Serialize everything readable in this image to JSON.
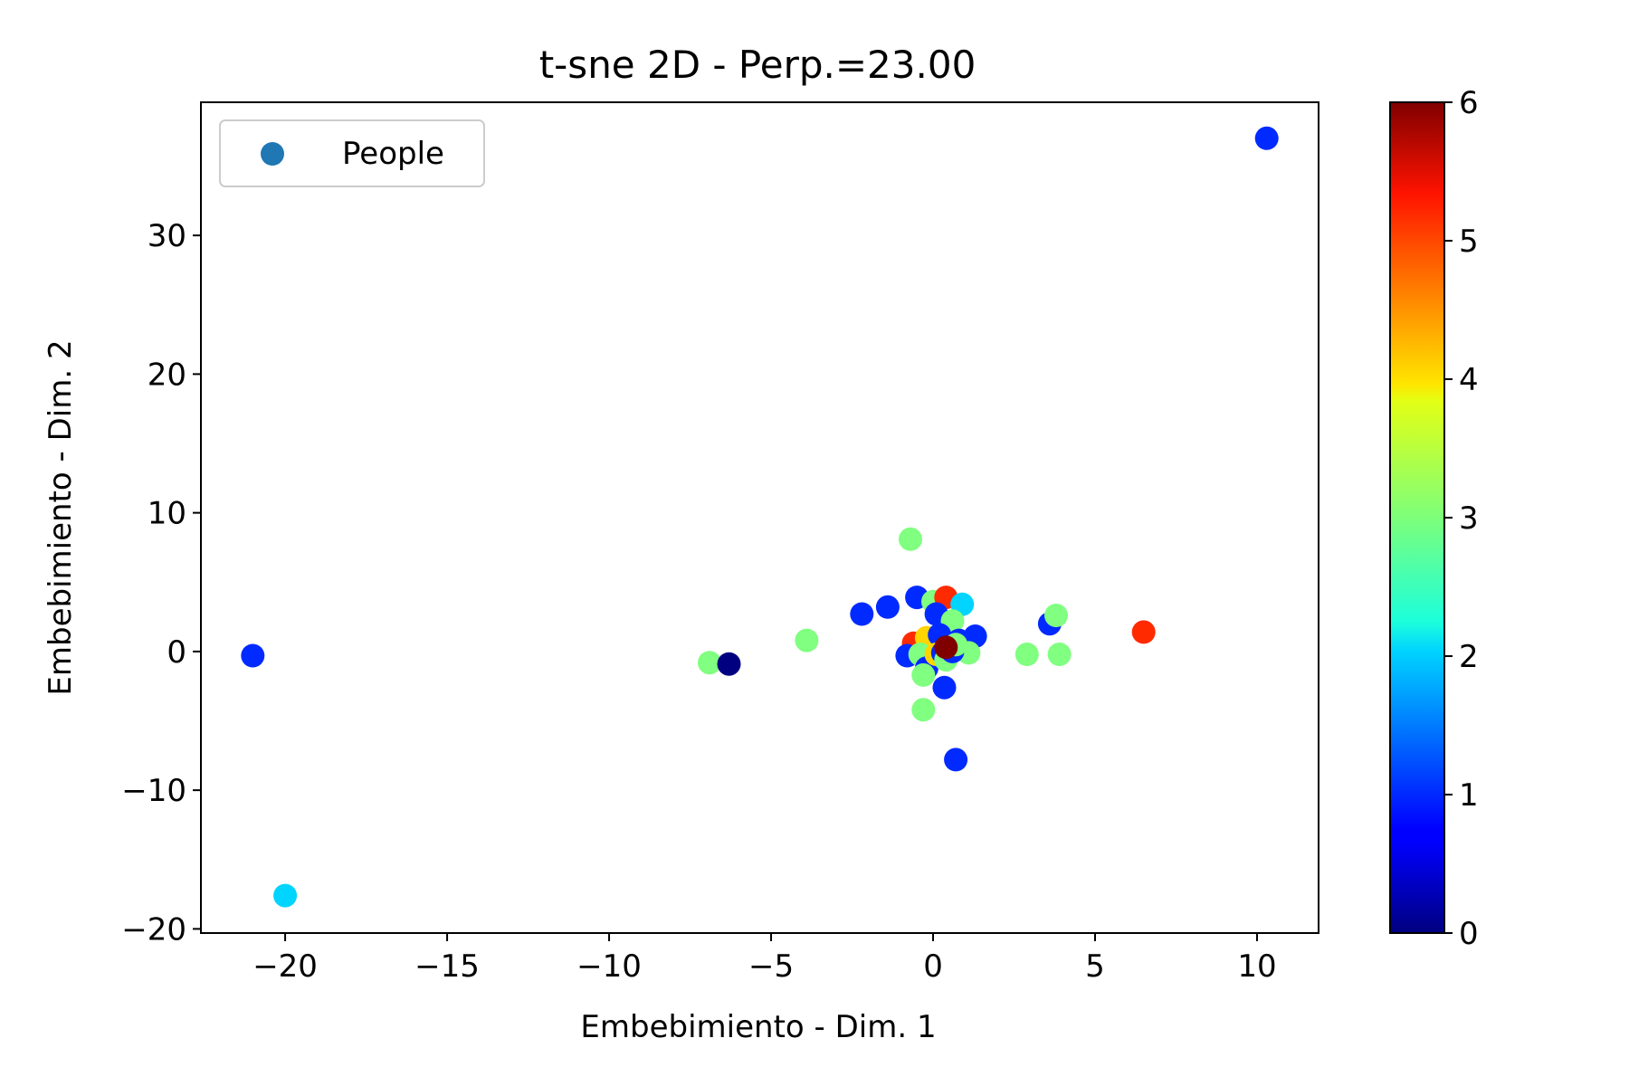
{
  "chart_data": {
    "type": "scatter",
    "title": "t-sne 2D - Perp.=23.00",
    "xlabel": "Embebimiento - Dim. 1",
    "ylabel": "Embebimiento - Dim. 2",
    "xlim": [
      -22.6,
      11.9
    ],
    "ylim": [
      -20.3,
      39.6
    ],
    "xticks": [
      -20,
      -15,
      -10,
      -5,
      0,
      5,
      10
    ],
    "xtick_labels": [
      "−20",
      "−15",
      "−10",
      "−5",
      "0",
      "5",
      "10"
    ],
    "yticks": [
      -20,
      -10,
      0,
      10,
      20,
      30
    ],
    "ytick_labels": [
      "−20",
      "−10",
      "0",
      "10",
      "20",
      "30"
    ],
    "grid": false,
    "legend": {
      "entries": [
        "People"
      ],
      "placement": "upper left",
      "marker_color": "#1f77b4"
    },
    "colorbar": {
      "min": 0,
      "max": 6,
      "ticks": [
        0,
        1,
        2,
        3,
        4,
        5,
        6
      ],
      "tick_labels": [
        "0",
        "1",
        "2",
        "3",
        "4",
        "5",
        "6"
      ],
      "colormap": "jet"
    },
    "series": [
      {
        "name": "People",
        "points": [
          {
            "x": 10.3,
            "y": 37.0,
            "c": 1
          },
          {
            "x": -21.0,
            "y": -0.3,
            "c": 1
          },
          {
            "x": -20.0,
            "y": -17.6,
            "c": 2
          },
          {
            "x": -6.9,
            "y": -0.8,
            "c": 3
          },
          {
            "x": -6.3,
            "y": -0.9,
            "c": 0
          },
          {
            "x": -3.9,
            "y": 0.8,
            "c": 3
          },
          {
            "x": -2.2,
            "y": 2.7,
            "c": 1
          },
          {
            "x": -1.4,
            "y": 3.2,
            "c": 1
          },
          {
            "x": -0.7,
            "y": 8.1,
            "c": 3
          },
          {
            "x": -0.5,
            "y": 3.9,
            "c": 1
          },
          {
            "x": 0.0,
            "y": 3.6,
            "c": 3
          },
          {
            "x": 0.4,
            "y": 3.9,
            "c": 5
          },
          {
            "x": 0.9,
            "y": 3.4,
            "c": 2
          },
          {
            "x": 0.1,
            "y": 2.7,
            "c": 1
          },
          {
            "x": 0.6,
            "y": 2.2,
            "c": 3
          },
          {
            "x": -0.6,
            "y": 0.6,
            "c": 5
          },
          {
            "x": -0.2,
            "y": 1.0,
            "c": 4
          },
          {
            "x": 0.2,
            "y": 1.2,
            "c": 1
          },
          {
            "x": 0.8,
            "y": 0.8,
            "c": 1
          },
          {
            "x": 1.3,
            "y": 1.1,
            "c": 1
          },
          {
            "x": 1.1,
            "y": -0.1,
            "c": 3
          },
          {
            "x": -0.8,
            "y": -0.3,
            "c": 1
          },
          {
            "x": -0.4,
            "y": -0.2,
            "c": 3
          },
          {
            "x": -0.2,
            "y": -0.6,
            "c": 3
          },
          {
            "x": -0.2,
            "y": -1.2,
            "c": 1
          },
          {
            "x": -0.3,
            "y": -1.7,
            "c": 3
          },
          {
            "x": 0.1,
            "y": -0.2,
            "c": 4
          },
          {
            "x": 0.3,
            "y": -0.1,
            "c": 1
          },
          {
            "x": 0.4,
            "y": -0.6,
            "c": 3
          },
          {
            "x": 0.6,
            "y": 0.0,
            "c": 1
          },
          {
            "x": 0.7,
            "y": 0.5,
            "c": 3
          },
          {
            "x": 0.4,
            "y": 0.3,
            "c": 6
          },
          {
            "x": 0.35,
            "y": -2.6,
            "c": 1
          },
          {
            "x": -0.3,
            "y": -4.2,
            "c": 3
          },
          {
            "x": 0.7,
            "y": -7.8,
            "c": 1
          },
          {
            "x": 2.9,
            "y": -0.2,
            "c": 3
          },
          {
            "x": 3.6,
            "y": 2.0,
            "c": 1
          },
          {
            "x": 3.8,
            "y": 2.6,
            "c": 3
          },
          {
            "x": 3.9,
            "y": -0.2,
            "c": 3
          },
          {
            "x": 6.5,
            "y": 1.4,
            "c": 5
          }
        ]
      }
    ]
  }
}
